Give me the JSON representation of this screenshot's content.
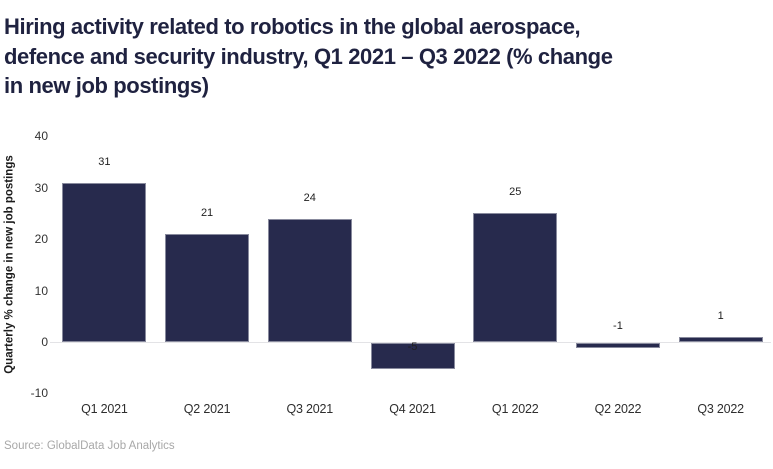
{
  "title": "Hiring activity related to robotics in the global aerospace,\ndefence and security industry, Q1 2021 – Q3 2022 (% change\nin new job postings)",
  "source": "Source: GlobalData Job Analytics",
  "chart_data": {
    "type": "bar",
    "title": "Hiring activity related to robotics in the global aerospace, defence and security industry, Q1 2021 – Q3 2022 (% change in new job postings)",
    "categories": [
      "Q1 2021",
      "Q2 2021",
      "Q3 2021",
      "Q4 2021",
      "Q1 2022",
      "Q2 2022",
      "Q3 2022"
    ],
    "values": [
      31,
      21,
      24,
      -5,
      25,
      -1,
      1
    ],
    "xlabel": "",
    "ylabel": "Quarterly % change in new job postings",
    "ylim": [
      -10,
      40
    ],
    "yticks": [
      40,
      30,
      20,
      10,
      0,
      -10
    ],
    "bar_color": "#272a4d",
    "grid": false,
    "legend": false,
    "data_labels": true
  }
}
